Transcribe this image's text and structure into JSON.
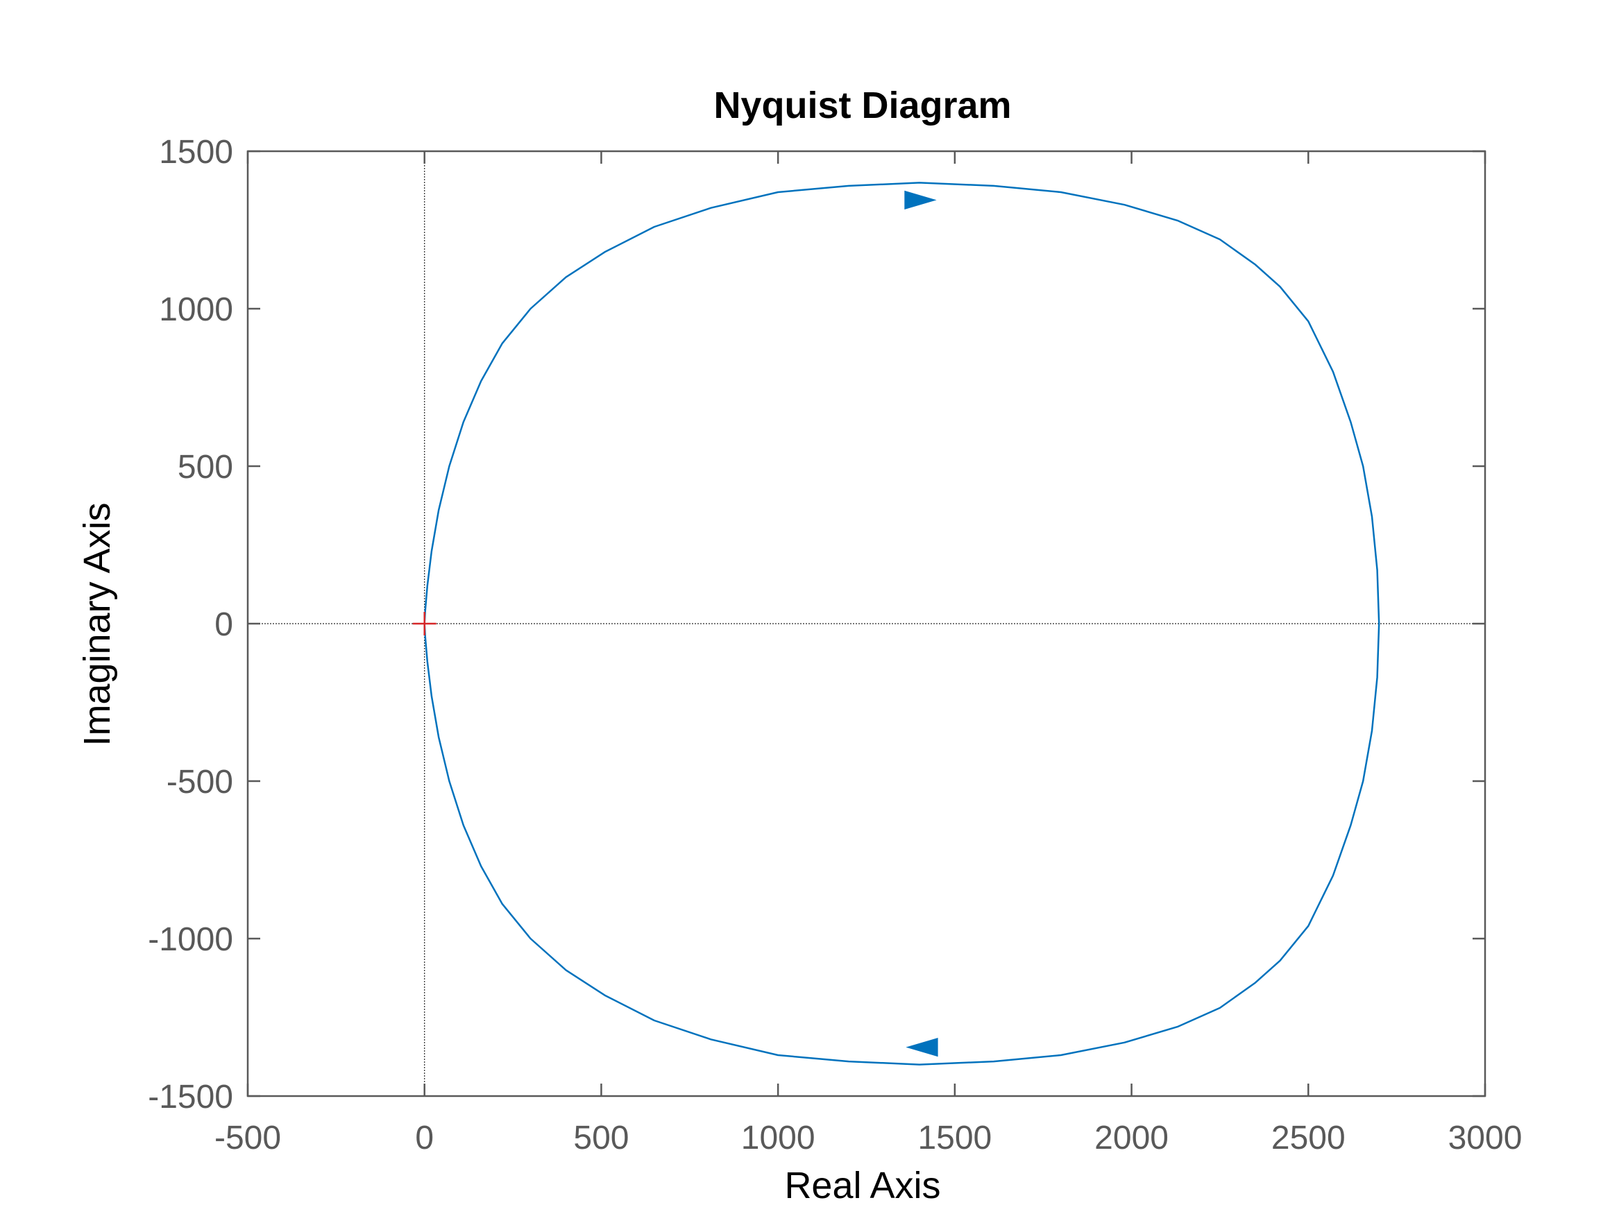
{
  "chart_data": {
    "type": "line",
    "title": "Nyquist Diagram",
    "xlabel": "Real Axis",
    "ylabel": "Imaginary Axis",
    "xlim": [
      -500,
      3000
    ],
    "ylim": [
      -1500,
      1500
    ],
    "xticks": [
      -500,
      0,
      500,
      1000,
      1500,
      2000,
      2500,
      3000
    ],
    "xtick_labels": [
      "-500",
      "0",
      "500",
      "1000",
      "1500",
      "2000",
      "2500",
      "3000"
    ],
    "yticks": [
      1500,
      1000,
      500,
      0,
      -500,
      -1000,
      -1500
    ],
    "ytick_labels": [
      "1500",
      "1000",
      "500",
      "0",
      "-500",
      "-1000",
      "-1500"
    ],
    "grid": false,
    "reference_lines": {
      "x": 0,
      "y": 0
    },
    "critical_point": {
      "x": 0,
      "y": 0,
      "marker": "+",
      "color": "#d62728"
    },
    "line_color": "#0072bd",
    "axis_color": "#595959",
    "series": [
      {
        "x": [
          2700,
          2695,
          2680,
          2655,
          2620,
          2570,
          2500,
          2420,
          2350,
          2250,
          2130,
          1980,
          1800,
          1610,
          1400,
          1200,
          1000,
          810,
          650,
          510,
          400,
          300,
          220,
          160,
          110,
          70,
          40,
          20,
          8,
          2,
          0
        ],
        "y": [
          0,
          170,
          340,
          500,
          640,
          800,
          960,
          1070,
          1140,
          1220,
          1280,
          1330,
          1370,
          1390,
          1400,
          1390,
          1370,
          1320,
          1260,
          1180,
          1100,
          1000,
          890,
          770,
          640,
          500,
          360,
          230,
          120,
          40,
          0
        ]
      },
      {
        "x": [
          2700,
          2695,
          2680,
          2655,
          2620,
          2570,
          2500,
          2420,
          2350,
          2250,
          2130,
          1980,
          1800,
          1610,
          1400,
          1200,
          1000,
          810,
          650,
          510,
          400,
          300,
          220,
          160,
          110,
          70,
          40,
          20,
          8,
          2,
          0
        ],
        "y": [
          0,
          -170,
          -340,
          -500,
          -640,
          -800,
          -960,
          -1070,
          -1140,
          -1220,
          -1280,
          -1330,
          -1370,
          -1390,
          -1400,
          -1390,
          -1370,
          -1320,
          -1260,
          -1180,
          -1100,
          -1000,
          -890,
          -770,
          -640,
          -500,
          -360,
          -230,
          -120,
          -40,
          0
        ]
      }
    ],
    "arrows": [
      {
        "x": 1390,
        "y": 1345,
        "direction": "right"
      },
      {
        "x": 1420,
        "y": -1345,
        "direction": "left"
      }
    ]
  }
}
